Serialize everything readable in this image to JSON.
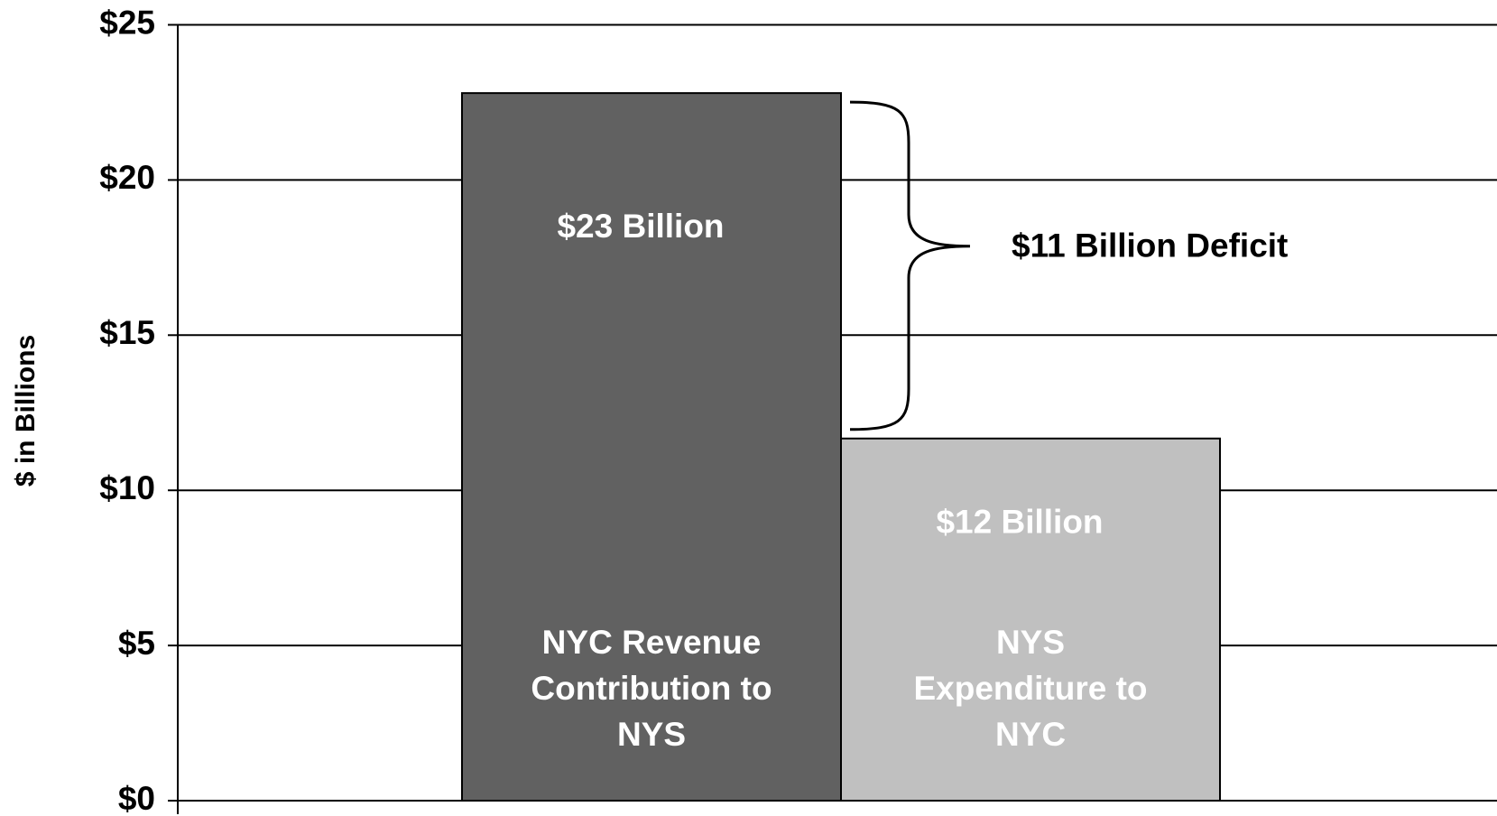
{
  "chart_data": {
    "type": "bar",
    "y_label": "$ in Billions",
    "categories": [
      "NYC Revenue Contribution to NYS",
      "NYS Expenditure to NYC"
    ],
    "values": [
      22.8,
      11.67
    ],
    "value_labels": [
      "$23 Billion",
      "$12 Billion"
    ],
    "colors": [
      "#616161",
      "#c0c0c0"
    ],
    "annotation": "$11 Billion Deficit",
    "ylim": [
      0,
      25
    ],
    "yticks": [
      {
        "value": 0,
        "label": "$0"
      },
      {
        "value": 5,
        "label": "$5"
      },
      {
        "value": 10,
        "label": "$10"
      },
      {
        "value": 15,
        "label": "$15"
      },
      {
        "value": 20,
        "label": "$20"
      },
      {
        "value": 25,
        "label": "$25"
      }
    ],
    "grid": true
  }
}
